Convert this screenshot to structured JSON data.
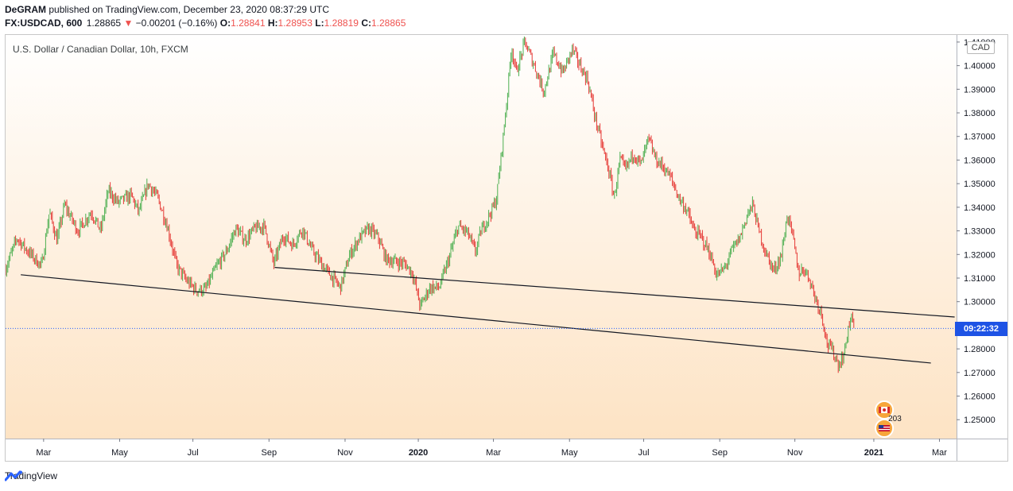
{
  "header": {
    "author": "DeGRAM",
    "published_text": "published on TradingView.com, December 23, 2020 08:37:29 UTC",
    "symbol": "FX:USDCAD, 600",
    "last": "1.28865",
    "change_arrow": "▼",
    "change": "−0.00201 (−0.16%)",
    "o_label": "O:",
    "o_value": "1.28841",
    "h_label": "H:",
    "h_value": "1.28953",
    "l_label": "L:",
    "l_value": "1.28819",
    "c_label": "C:",
    "c_value": "1.28865"
  },
  "legend": {
    "title": "U.S. Dollar / Canadian Dollar, 10h, FXCM"
  },
  "currency_badge": "CAD",
  "countdown": "09:22:32",
  "event_count": "203",
  "footer": {
    "brand": "TradingView"
  },
  "colors": {
    "up": "#26a69a",
    "down": "#ef5350",
    "up_candle": "#4caf50",
    "down_candle": "#e53935",
    "accent": "#1e53e5",
    "bg_top": "#ffffff",
    "bg_bottom": "#fde3c4"
  },
  "chart_data": {
    "type": "candlestick",
    "title": "U.S. Dollar / Canadian Dollar, 10h, FXCM",
    "ylim": [
      1.242,
      1.413
    ],
    "y_ticks": [
      "1.25000",
      "1.26000",
      "1.27000",
      "1.28000",
      "1.29000",
      "1.30000",
      "1.31000",
      "1.32000",
      "1.33000",
      "1.34000",
      "1.35000",
      "1.36000",
      "1.37000",
      "1.38000",
      "1.39000",
      "1.40000",
      "1.41000"
    ],
    "x_ticks": [
      {
        "label": "Mar",
        "t": 0.04
      },
      {
        "label": "May",
        "t": 0.12
      },
      {
        "label": "Jul",
        "t": 0.197
      },
      {
        "label": "Sep",
        "t": 0.277
      },
      {
        "label": "Nov",
        "t": 0.357
      },
      {
        "label": "2020",
        "t": 0.434,
        "bold": true
      },
      {
        "label": "Mar",
        "t": 0.513
      },
      {
        "label": "May",
        "t": 0.593
      },
      {
        "label": "Jul",
        "t": 0.671
      },
      {
        "label": "Sep",
        "t": 0.751
      },
      {
        "label": "Nov",
        "t": 0.83
      },
      {
        "label": "2021",
        "t": 0.913,
        "bold": true
      },
      {
        "label": "Mar",
        "t": 0.982
      }
    ],
    "current_price": 1.28865,
    "close_path": [
      [
        0.0,
        1.314
      ],
      [
        0.012,
        1.327
      ],
      [
        0.022,
        1.322
      ],
      [
        0.038,
        1.315
      ],
      [
        0.046,
        1.338
      ],
      [
        0.054,
        1.326
      ],
      [
        0.062,
        1.341
      ],
      [
        0.076,
        1.33
      ],
      [
        0.09,
        1.338
      ],
      [
        0.1,
        1.33
      ],
      [
        0.108,
        1.347
      ],
      [
        0.118,
        1.342
      ],
      [
        0.132,
        1.345
      ],
      [
        0.14,
        1.338
      ],
      [
        0.15,
        1.35
      ],
      [
        0.16,
        1.344
      ],
      [
        0.17,
        1.332
      ],
      [
        0.18,
        1.315
      ],
      [
        0.19,
        1.309
      ],
      [
        0.2,
        1.305
      ],
      [
        0.21,
        1.305
      ],
      [
        0.222,
        1.315
      ],
      [
        0.232,
        1.321
      ],
      [
        0.242,
        1.331
      ],
      [
        0.252,
        1.326
      ],
      [
        0.262,
        1.331
      ],
      [
        0.272,
        1.332
      ],
      [
        0.282,
        1.316
      ],
      [
        0.292,
        1.328
      ],
      [
        0.302,
        1.324
      ],
      [
        0.312,
        1.331
      ],
      [
        0.322,
        1.322
      ],
      [
        0.332,
        1.316
      ],
      [
        0.342,
        1.311
      ],
      [
        0.352,
        1.306
      ],
      [
        0.362,
        1.32
      ],
      [
        0.372,
        1.327
      ],
      [
        0.382,
        1.331
      ],
      [
        0.392,
        1.327
      ],
      [
        0.4,
        1.318
      ],
      [
        0.41,
        1.317
      ],
      [
        0.42,
        1.316
      ],
      [
        0.428,
        1.312
      ],
      [
        0.436,
        1.298
      ],
      [
        0.446,
        1.306
      ],
      [
        0.456,
        1.306
      ],
      [
        0.466,
        1.318
      ],
      [
        0.476,
        1.332
      ],
      [
        0.486,
        1.329
      ],
      [
        0.494,
        1.321
      ],
      [
        0.5,
        1.33
      ],
      [
        0.508,
        1.336
      ],
      [
        0.516,
        1.343
      ],
      [
        0.522,
        1.365
      ],
      [
        0.527,
        1.385
      ],
      [
        0.532,
        1.408
      ],
      [
        0.537,
        1.397
      ],
      [
        0.546,
        1.41
      ],
      [
        0.556,
        1.4
      ],
      [
        0.566,
        1.389
      ],
      [
        0.576,
        1.405
      ],
      [
        0.586,
        1.397
      ],
      [
        0.596,
        1.407
      ],
      [
        0.604,
        1.4
      ],
      [
        0.612,
        1.394
      ],
      [
        0.62,
        1.378
      ],
      [
        0.628,
        1.365
      ],
      [
        0.634,
        1.356
      ],
      [
        0.64,
        1.344
      ],
      [
        0.646,
        1.36
      ],
      [
        0.652,
        1.356
      ],
      [
        0.66,
        1.363
      ],
      [
        0.668,
        1.358
      ],
      [
        0.676,
        1.369
      ],
      [
        0.684,
        1.36
      ],
      [
        0.692,
        1.357
      ],
      [
        0.7,
        1.352
      ],
      [
        0.708,
        1.344
      ],
      [
        0.716,
        1.339
      ],
      [
        0.724,
        1.33
      ],
      [
        0.732,
        1.327
      ],
      [
        0.74,
        1.321
      ],
      [
        0.748,
        1.311
      ],
      [
        0.756,
        1.314
      ],
      [
        0.764,
        1.322
      ],
      [
        0.772,
        1.327
      ],
      [
        0.78,
        1.337
      ],
      [
        0.786,
        1.341
      ],
      [
        0.792,
        1.33
      ],
      [
        0.8,
        1.32
      ],
      [
        0.808,
        1.313
      ],
      [
        0.816,
        1.32
      ],
      [
        0.822,
        1.337
      ],
      [
        0.828,
        1.327
      ],
      [
        0.834,
        1.312
      ],
      [
        0.84,
        1.314
      ],
      [
        0.846,
        1.309
      ],
      [
        0.852,
        1.301
      ],
      [
        0.858,
        1.295
      ],
      [
        0.864,
        1.282
      ],
      [
        0.87,
        1.279
      ],
      [
        0.876,
        1.273
      ],
      [
        0.882,
        1.278
      ],
      [
        0.886,
        1.289
      ],
      [
        0.89,
        1.293
      ],
      [
        0.893,
        1.2887
      ]
    ],
    "trendlines": [
      {
        "t1": 0.016,
        "p1": 1.3114,
        "t2": 0.973,
        "p2": 1.274
      },
      {
        "t1": 0.283,
        "p1": 1.3145,
        "t2": 0.998,
        "p2": 1.2935
      }
    ],
    "event_marker_t": 0.924
  }
}
